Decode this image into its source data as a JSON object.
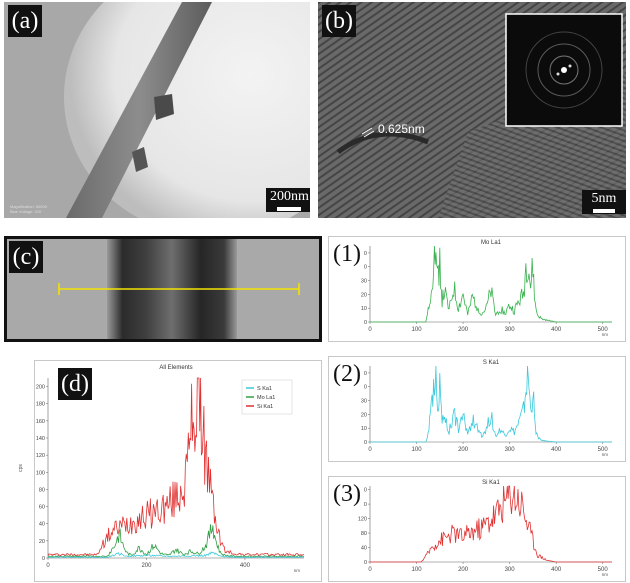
{
  "panels": {
    "a": {
      "label": "(a)",
      "scale": "200nm",
      "info": [
        "Magnification: 50000",
        "Bias Voltage: 200"
      ]
    },
    "b": {
      "label": "(b)",
      "scale": "5nm",
      "spacing": "0.625nm"
    },
    "c": {
      "label": "(c)"
    },
    "d": {
      "label": "(d)"
    },
    "p1": {
      "label": "(1)"
    },
    "p2": {
      "label": "(2)"
    },
    "p3": {
      "label": "(3)"
    }
  },
  "chart_data": [
    {
      "id": "d",
      "type": "line",
      "title": "All Elements",
      "ylabel": "cps",
      "xlabel": "nm",
      "xlim": [
        0,
        520
      ],
      "ylim": [
        0,
        210
      ],
      "xticks": [
        0,
        200,
        400
      ],
      "yticks": [
        0,
        20,
        40,
        60,
        80,
        100,
        120,
        140,
        160,
        180,
        200
      ],
      "legend": {
        "placement": "top-right",
        "entries": [
          "S Ka1",
          "Mo La1",
          "Si Ka1"
        ]
      },
      "series": [
        {
          "name": "Si Ka1",
          "color": "#e03131",
          "x": [
            0,
            100,
            110,
            125,
            140,
            160,
            180,
            200,
            220,
            240,
            260,
            275,
            285,
            290,
            295,
            300,
            305,
            310,
            315,
            320,
            330,
            340,
            345,
            350,
            360,
            380,
            400,
            450,
            520
          ],
          "y": [
            4,
            4,
            15,
            28,
            35,
            40,
            45,
            50,
            55,
            60,
            70,
            85,
            110,
            150,
            175,
            160,
            205,
            180,
            150,
            120,
            80,
            45,
            35,
            20,
            8,
            5,
            4,
            4,
            4
          ]
        },
        {
          "name": "Mo La1",
          "color": "#2f9e44",
          "x": [
            0,
            120,
            135,
            145,
            150,
            160,
            170,
            185,
            200,
            215,
            230,
            245,
            260,
            275,
            290,
            305,
            320,
            330,
            335,
            340,
            350,
            360,
            380,
            520
          ],
          "y": [
            2,
            2,
            14,
            28,
            18,
            6,
            3,
            12,
            4,
            15,
            5,
            3,
            10,
            4,
            8,
            5,
            14,
            30,
            40,
            22,
            6,
            3,
            2,
            2
          ]
        },
        {
          "name": "S Ka1",
          "color": "#3bc9db",
          "x": [
            0,
            120,
            145,
            160,
            200,
            250,
            320,
            335,
            350,
            380,
            520
          ],
          "y": [
            1,
            1,
            5,
            2,
            3,
            2,
            3,
            6,
            2,
            1,
            1
          ]
        }
      ]
    },
    {
      "id": "1",
      "type": "line",
      "title": "Mo La1",
      "xlabel": "nm",
      "xlim": [
        0,
        520
      ],
      "ylim": [
        0,
        55
      ],
      "xticks": [
        0,
        100,
        200,
        300,
        400,
        500
      ],
      "yticks": [
        0,
        10,
        20,
        30,
        40,
        50
      ],
      "series": [
        {
          "name": "Mo La1",
          "color": "#37b24d",
          "x": [
            0,
            120,
            125,
            130,
            135,
            140,
            145,
            150,
            155,
            160,
            170,
            180,
            190,
            200,
            210,
            220,
            230,
            240,
            250,
            260,
            270,
            280,
            290,
            300,
            310,
            320,
            330,
            335,
            340,
            345,
            350,
            355,
            360,
            370,
            400,
            450,
            500,
            520
          ],
          "y": [
            0,
            0,
            8,
            20,
            38,
            55,
            30,
            45,
            15,
            22,
            8,
            25,
            10,
            20,
            5,
            18,
            12,
            6,
            10,
            22,
            5,
            10,
            6,
            12,
            8,
            15,
            20,
            40,
            45,
            25,
            40,
            12,
            5,
            2,
            0,
            0,
            0,
            0
          ]
        }
      ]
    },
    {
      "id": "2",
      "type": "line",
      "title": "S Ka1",
      "xlabel": "nm",
      "xlim": [
        0,
        520
      ],
      "ylim": [
        0,
        55
      ],
      "xticks": [
        0,
        100,
        200,
        300,
        400,
        500
      ],
      "yticks": [
        0,
        10,
        20,
        30,
        40,
        50
      ],
      "series": [
        {
          "name": "S Ka1",
          "color": "#3bc9db",
          "x": [
            0,
            120,
            125,
            130,
            135,
            140,
            145,
            150,
            155,
            160,
            170,
            180,
            190,
            200,
            210,
            220,
            230,
            240,
            250,
            260,
            270,
            280,
            290,
            300,
            310,
            320,
            330,
            335,
            340,
            345,
            350,
            355,
            360,
            370,
            400,
            450,
            500,
            520
          ],
          "y": [
            0,
            0,
            6,
            18,
            35,
            53,
            28,
            40,
            14,
            20,
            7,
            22,
            10,
            18,
            6,
            16,
            10,
            5,
            9,
            20,
            4,
            9,
            5,
            10,
            7,
            14,
            22,
            38,
            48,
            22,
            36,
            10,
            4,
            1,
            0,
            0,
            0,
            0
          ]
        }
      ]
    },
    {
      "id": "3",
      "type": "line",
      "title": "Si Ka1",
      "xlabel": "nm",
      "xlim": [
        0,
        520
      ],
      "ylim": [
        0,
        210
      ],
      "xticks": [
        0,
        100,
        200,
        300,
        400,
        500
      ],
      "yticks": [
        0,
        40,
        80,
        120,
        160,
        200
      ],
      "series": [
        {
          "name": "Si Ka1",
          "color": "#e03131",
          "x": [
            0,
            110,
            120,
            135,
            150,
            165,
            180,
            200,
            220,
            240,
            260,
            275,
            285,
            295,
            300,
            310,
            320,
            330,
            340,
            350,
            360,
            380,
            400,
            450,
            520
          ],
          "y": [
            0,
            0,
            15,
            45,
            60,
            70,
            80,
            70,
            85,
            95,
            120,
            140,
            165,
            175,
            200,
            190,
            175,
            150,
            100,
            60,
            20,
            5,
            0,
            0,
            0
          ]
        }
      ]
    }
  ]
}
